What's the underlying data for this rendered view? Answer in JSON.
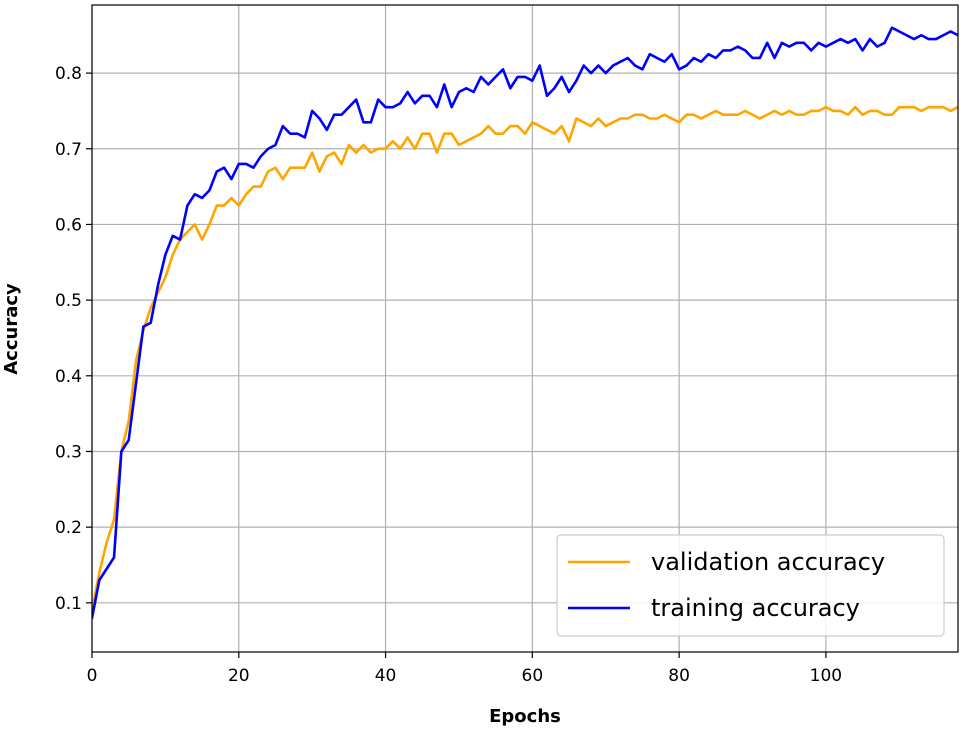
{
  "chart_data": {
    "type": "line",
    "xlabel": "Epochs",
    "ylabel": "Accuracy",
    "xlim": [
      0,
      118
    ],
    "ylim": [
      0.035,
      0.89
    ],
    "x_ticks": [
      0,
      20,
      40,
      60,
      80,
      100
    ],
    "x_tick_labels": [
      "0",
      "20",
      "40",
      "60",
      "80",
      "100"
    ],
    "y_ticks": [
      0.1,
      0.2,
      0.3,
      0.4,
      0.5,
      0.6,
      0.7,
      0.8
    ],
    "y_tick_labels": [
      "0.1",
      "0.2",
      "0.3",
      "0.4",
      "0.5",
      "0.6",
      "0.7",
      "0.8"
    ],
    "grid": true,
    "legend_position": "lower-right",
    "series": [
      {
        "name": "validation accuracy",
        "color": "#ffa500",
        "x": [
          0,
          1,
          2,
          3,
          4,
          5,
          6,
          7,
          8,
          9,
          10,
          11,
          12,
          13,
          14,
          15,
          16,
          17,
          18,
          19,
          20,
          21,
          22,
          23,
          24,
          25,
          26,
          27,
          28,
          29,
          30,
          31,
          32,
          33,
          34,
          35,
          36,
          37,
          38,
          39,
          40,
          41,
          42,
          43,
          44,
          45,
          46,
          47,
          48,
          49,
          50,
          51,
          52,
          53,
          54,
          55,
          56,
          57,
          58,
          59,
          60,
          61,
          62,
          63,
          64,
          65,
          66,
          67,
          68,
          69,
          70,
          71,
          72,
          73,
          74,
          75,
          76,
          77,
          78,
          79,
          80,
          81,
          82,
          83,
          84,
          85,
          86,
          87,
          88,
          89,
          90,
          91,
          92,
          93,
          94,
          95,
          96,
          97,
          98,
          99,
          100,
          101,
          102,
          103,
          104,
          105,
          106,
          107,
          108,
          109,
          110,
          111,
          112,
          113,
          114,
          115,
          116,
          117,
          118
        ],
        "values": [
          0.09,
          0.14,
          0.18,
          0.21,
          0.3,
          0.34,
          0.42,
          0.46,
          0.49,
          0.51,
          0.53,
          0.56,
          0.58,
          0.59,
          0.6,
          0.58,
          0.6,
          0.625,
          0.625,
          0.635,
          0.625,
          0.64,
          0.65,
          0.65,
          0.67,
          0.675,
          0.66,
          0.675,
          0.675,
          0.675,
          0.695,
          0.67,
          0.69,
          0.695,
          0.68,
          0.705,
          0.695,
          0.705,
          0.695,
          0.7,
          0.7,
          0.71,
          0.7,
          0.715,
          0.7,
          0.72,
          0.72,
          0.695,
          0.72,
          0.72,
          0.705,
          0.71,
          0.715,
          0.72,
          0.73,
          0.72,
          0.72,
          0.73,
          0.73,
          0.72,
          0.735,
          0.73,
          0.725,
          0.72,
          0.73,
          0.71,
          0.74,
          0.735,
          0.73,
          0.74,
          0.73,
          0.735,
          0.74,
          0.74,
          0.745,
          0.745,
          0.74,
          0.74,
          0.745,
          0.74,
          0.735,
          0.745,
          0.745,
          0.74,
          0.745,
          0.75,
          0.745,
          0.745,
          0.745,
          0.75,
          0.745,
          0.74,
          0.745,
          0.75,
          0.745,
          0.75,
          0.745,
          0.745,
          0.75,
          0.75,
          0.755,
          0.75,
          0.75,
          0.745,
          0.755,
          0.745,
          0.75,
          0.75,
          0.745,
          0.745,
          0.755,
          0.755,
          0.755,
          0.75,
          0.755,
          0.755,
          0.755,
          0.75,
          0.755
        ]
      },
      {
        "name": "training accuracy",
        "color": "#0000ff",
        "x": [
          0,
          1,
          2,
          3,
          4,
          5,
          6,
          7,
          8,
          9,
          10,
          11,
          12,
          13,
          14,
          15,
          16,
          17,
          18,
          19,
          20,
          21,
          22,
          23,
          24,
          25,
          26,
          27,
          28,
          29,
          30,
          31,
          32,
          33,
          34,
          35,
          36,
          37,
          38,
          39,
          40,
          41,
          42,
          43,
          44,
          45,
          46,
          47,
          48,
          49,
          50,
          51,
          52,
          53,
          54,
          55,
          56,
          57,
          58,
          59,
          60,
          61,
          62,
          63,
          64,
          65,
          66,
          67,
          68,
          69,
          70,
          71,
          72,
          73,
          74,
          75,
          76,
          77,
          78,
          79,
          80,
          81,
          82,
          83,
          84,
          85,
          86,
          87,
          88,
          89,
          90,
          91,
          92,
          93,
          94,
          95,
          96,
          97,
          98,
          99,
          100,
          101,
          102,
          103,
          104,
          105,
          106,
          107,
          108,
          109,
          110,
          111,
          112,
          113,
          114,
          115,
          116,
          117,
          118
        ],
        "values": [
          0.08,
          0.13,
          0.145,
          0.16,
          0.3,
          0.315,
          0.39,
          0.465,
          0.47,
          0.52,
          0.56,
          0.585,
          0.58,
          0.625,
          0.64,
          0.635,
          0.645,
          0.67,
          0.675,
          0.66,
          0.68,
          0.68,
          0.675,
          0.69,
          0.7,
          0.705,
          0.73,
          0.72,
          0.72,
          0.715,
          0.75,
          0.74,
          0.725,
          0.745,
          0.745,
          0.755,
          0.765,
          0.735,
          0.735,
          0.765,
          0.755,
          0.755,
          0.76,
          0.775,
          0.76,
          0.77,
          0.77,
          0.755,
          0.785,
          0.755,
          0.775,
          0.78,
          0.775,
          0.795,
          0.785,
          0.795,
          0.805,
          0.78,
          0.795,
          0.795,
          0.79,
          0.81,
          0.77,
          0.78,
          0.795,
          0.775,
          0.79,
          0.81,
          0.8,
          0.81,
          0.8,
          0.81,
          0.815,
          0.82,
          0.81,
          0.805,
          0.825,
          0.82,
          0.815,
          0.825,
          0.805,
          0.81,
          0.82,
          0.815,
          0.825,
          0.82,
          0.83,
          0.83,
          0.835,
          0.83,
          0.82,
          0.82,
          0.84,
          0.82,
          0.84,
          0.835,
          0.84,
          0.84,
          0.83,
          0.84,
          0.835,
          0.84,
          0.845,
          0.84,
          0.845,
          0.83,
          0.845,
          0.835,
          0.84,
          0.86,
          0.855,
          0.85,
          0.845,
          0.85,
          0.845,
          0.845,
          0.85,
          0.855,
          0.85
        ]
      }
    ]
  }
}
